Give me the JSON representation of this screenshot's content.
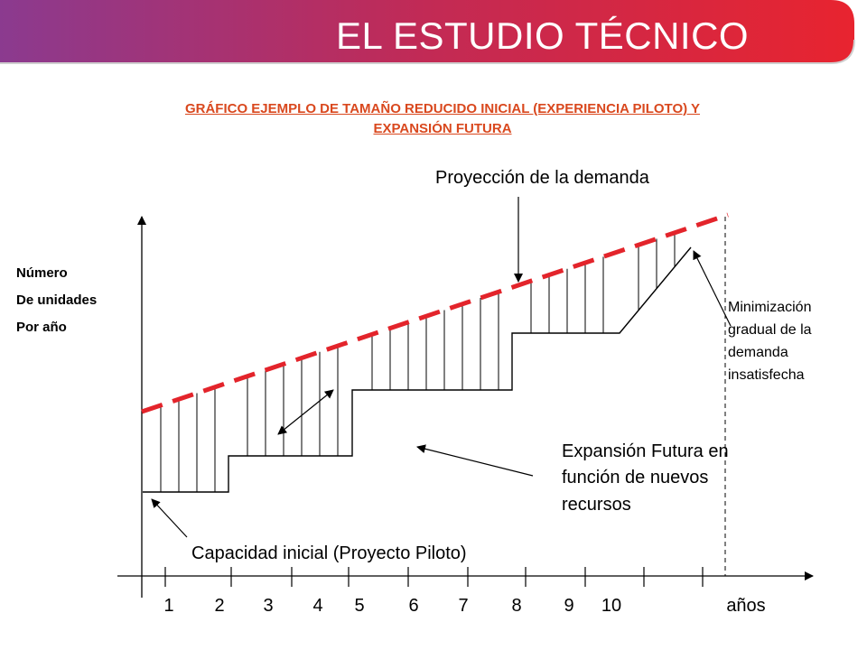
{
  "header": {
    "title": "EL ESTUDIO TÉCNICO",
    "accent_start": "#8b3a8f",
    "accent_end": "#e8242f"
  },
  "subtitle": {
    "line1": "GRÁFICO EJEMPLO DE TAMAÑO REDUCIDO INICIAL (EXPERIENCIA PILOTO) Y",
    "line2": "EXPANSIÓN FUTURA",
    "color": "#d9481e"
  },
  "axis": {
    "y_label_lines": [
      "Número",
      "De unidades",
      "Por año"
    ],
    "x_ticks": [
      "1",
      "2",
      "3",
      "4",
      "5",
      "6",
      "7",
      "8",
      "9",
      "10"
    ],
    "x_unit": "años"
  },
  "annotations": {
    "demand_projection": "Proyección de la demanda",
    "expansion_lines": [
      "Expansión Futura en",
      "función de nuevos",
      "recursos"
    ],
    "initial_capacity": "Capacidad inicial (Proyecto Piloto)",
    "minimization_lines": [
      "Minimización",
      "gradual de la",
      "demanda",
      "insatisfecha"
    ]
  },
  "colors": {
    "demand_line": "#e3242b",
    "ink": "#000000"
  }
}
